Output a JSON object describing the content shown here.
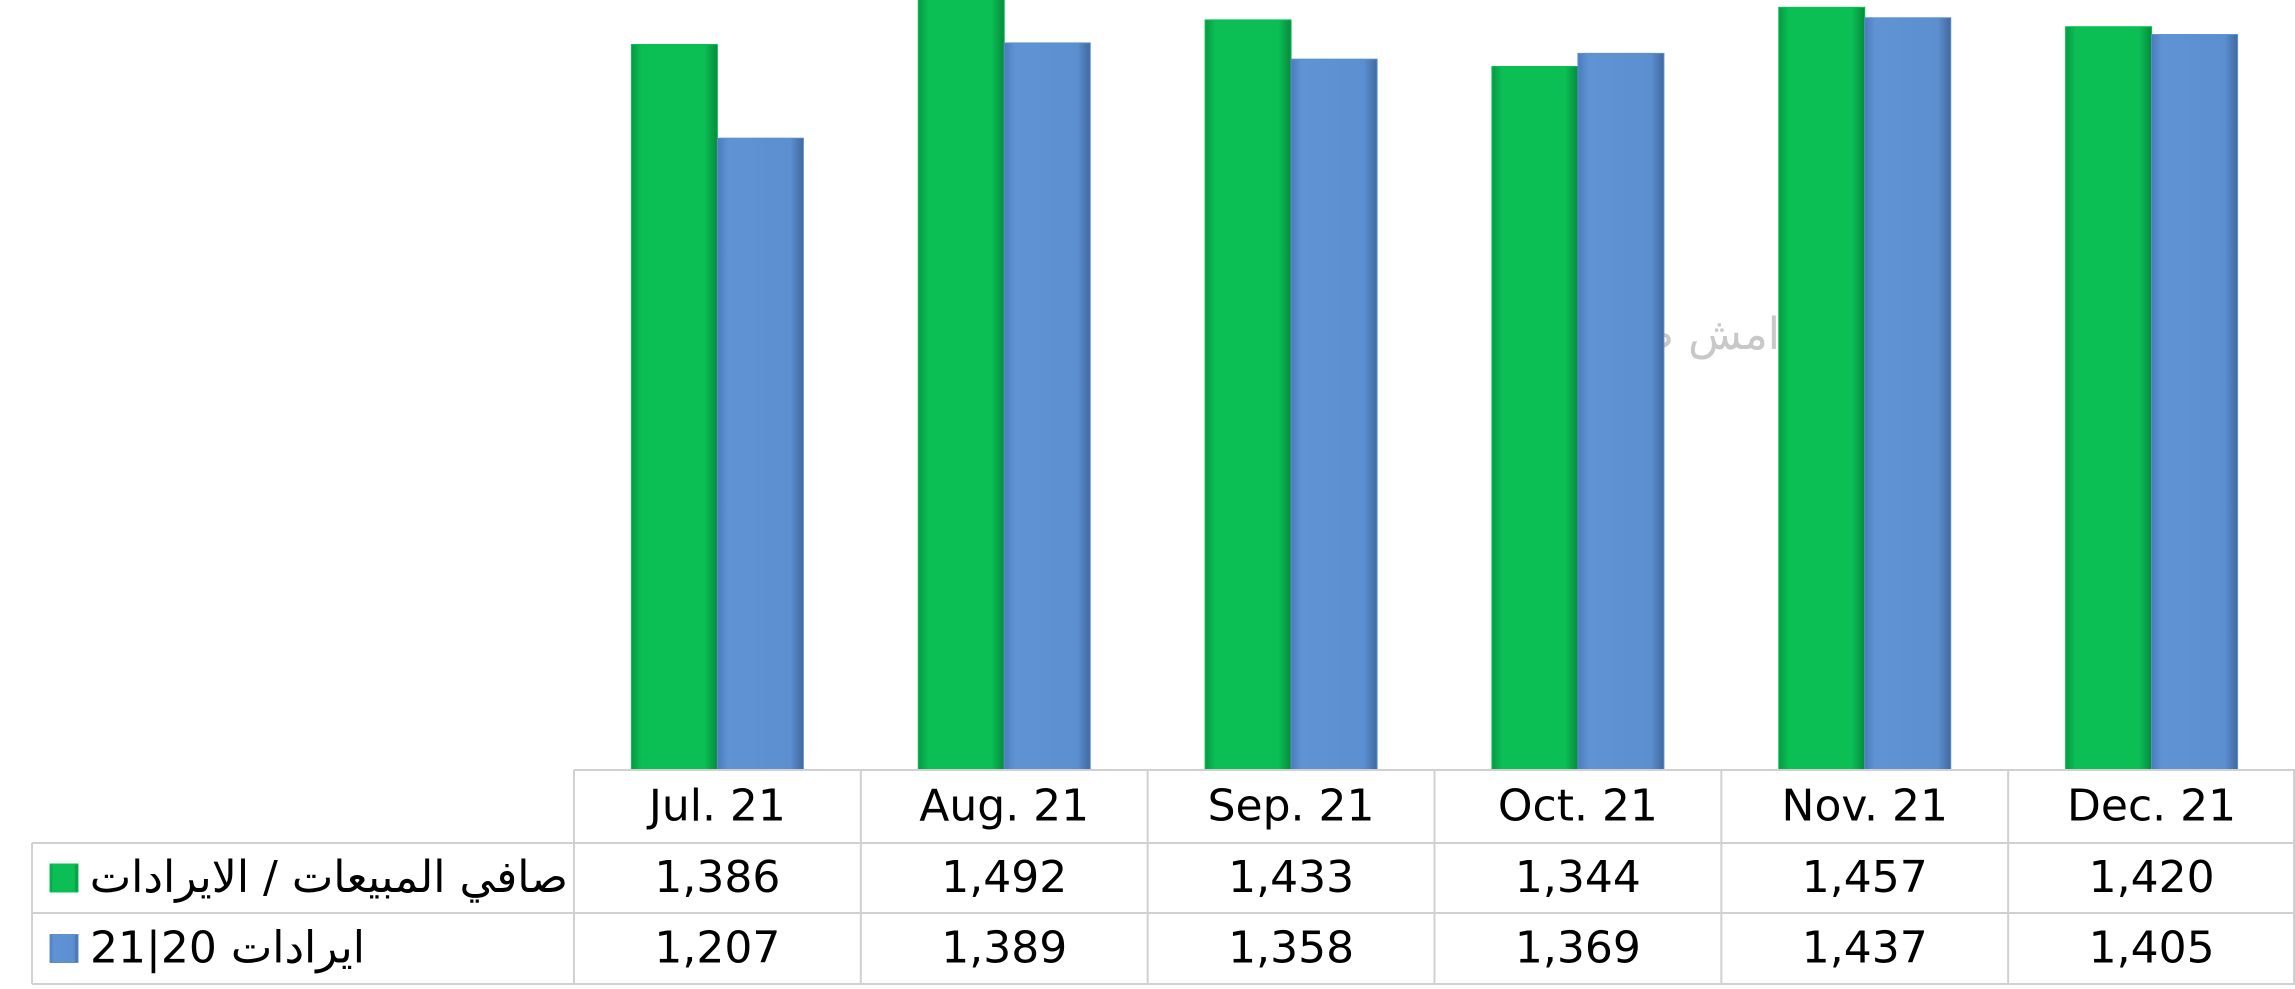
{
  "chart_data": {
    "type": "bar",
    "categories": [
      "Jul. 21",
      "Aug. 21",
      "Sep. 21",
      "Oct. 21",
      "Nov. 21",
      "Dec. 21"
    ],
    "series": [
      {
        "name": "صافي المبيعات / الايرادات",
        "color": "#0bbf55",
        "values": [
          1386,
          1492,
          1433,
          1344,
          1457,
          1420
        ],
        "value_labels": [
          "1,386",
          "1,492",
          "1,433",
          "1,344",
          "1,457",
          "1,420"
        ]
      },
      {
        "name": "ايرادات 20|21",
        "color": "#5b8fd0",
        "values": [
          1207,
          1389,
          1358,
          1369,
          1437,
          1405
        ],
        "value_labels": [
          "1,207",
          "1,389",
          "1,358",
          "1,369",
          "1,437",
          "1,405"
        ]
      }
    ],
    "ylim": [
      0,
      1471
    ],
    "annotation": "امش ص"
  }
}
